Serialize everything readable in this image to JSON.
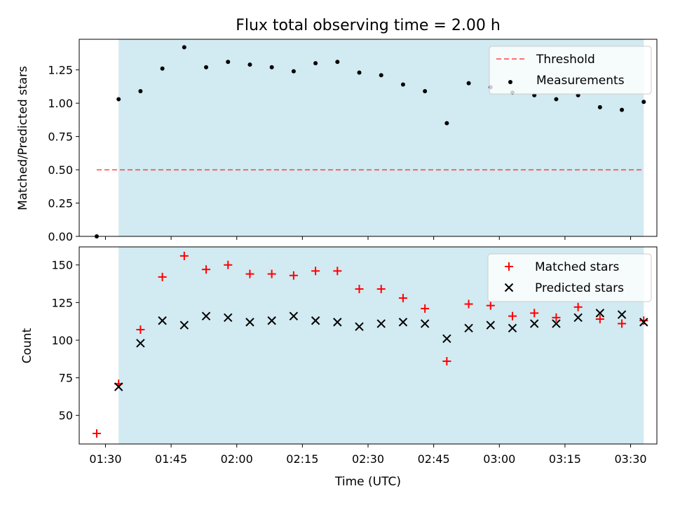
{
  "chart_data": [
    {
      "type": "scatter",
      "title": "Flux total observing time = 2.00 h",
      "ylabel": "Matched/Predicted stars",
      "xlabel": "",
      "x_unit": "Time (UTC)",
      "xlim": [
        "01:24",
        "03:36"
      ],
      "ylim": [
        0,
        1.48
      ],
      "yticks": [
        "0.00",
        "0.25",
        "0.50",
        "0.75",
        "1.00",
        "1.25"
      ],
      "xticks": [
        "01:30",
        "01:45",
        "02:00",
        "02:15",
        "02:30",
        "02:45",
        "03:00",
        "03:15",
        "03:30"
      ],
      "shaded_region": {
        "from": "01:33",
        "to": "03:33",
        "color": "#add8e6"
      },
      "legend_position": "top-right",
      "series": [
        {
          "name": "Threshold",
          "style": "dashed-line",
          "color": "#ff0000",
          "x": [
            "01:28",
            "03:33"
          ],
          "y": [
            0.5,
            0.5
          ]
        },
        {
          "name": "Measurements",
          "style": "dot",
          "color": "#000000",
          "x": [
            "01:28",
            "01:33",
            "01:38",
            "01:43",
            "01:48",
            "01:53",
            "01:58",
            "02:03",
            "02:08",
            "02:13",
            "02:18",
            "02:23",
            "02:28",
            "02:33",
            "02:38",
            "02:43",
            "02:48",
            "02:53",
            "02:58",
            "03:03",
            "03:08",
            "03:13",
            "03:18",
            "03:23",
            "03:28",
            "03:33"
          ],
          "y": [
            0.0,
            1.03,
            1.09,
            1.26,
            1.42,
            1.27,
            1.31,
            1.29,
            1.27,
            1.24,
            1.3,
            1.31,
            1.23,
            1.21,
            1.14,
            1.09,
            0.85,
            1.15,
            1.12,
            1.08,
            1.06,
            1.03,
            1.06,
            0.97,
            0.95,
            1.01
          ]
        }
      ]
    },
    {
      "type": "scatter",
      "title": "",
      "ylabel": "Count",
      "xlabel": "Time (UTC)",
      "xlim": [
        "01:24",
        "03:36"
      ],
      "ylim": [
        31,
        162
      ],
      "yticks": [
        "50",
        "75",
        "100",
        "125",
        "150"
      ],
      "xticks": [
        "01:30",
        "01:45",
        "02:00",
        "02:15",
        "02:30",
        "02:45",
        "03:00",
        "03:15",
        "03:30"
      ],
      "shaded_region": {
        "from": "01:33",
        "to": "03:33",
        "color": "#add8e6"
      },
      "legend_position": "top-right",
      "series": [
        {
          "name": "Matched stars",
          "style": "plus",
          "color": "#ff0000",
          "x": [
            "01:28",
            "01:33",
            "01:38",
            "01:43",
            "01:48",
            "01:53",
            "01:58",
            "02:03",
            "02:08",
            "02:13",
            "02:18",
            "02:23",
            "02:28",
            "02:33",
            "02:38",
            "02:43",
            "02:48",
            "02:53",
            "02:58",
            "03:03",
            "03:08",
            "03:13",
            "03:18",
            "03:23",
            "03:28",
            "03:33"
          ],
          "y": [
            38,
            71,
            107,
            142,
            156,
            147,
            150,
            144,
            144,
            143,
            146,
            146,
            134,
            134,
            128,
            121,
            86,
            124,
            123,
            116,
            118,
            115,
            122,
            114,
            111,
            113
          ]
        },
        {
          "name": "Predicted stars",
          "style": "x",
          "color": "#000000",
          "x": [
            "01:33",
            "01:38",
            "01:43",
            "01:48",
            "01:53",
            "01:58",
            "02:03",
            "02:08",
            "02:13",
            "02:18",
            "02:23",
            "02:28",
            "02:33",
            "02:38",
            "02:43",
            "02:48",
            "02:53",
            "02:58",
            "03:03",
            "03:08",
            "03:13",
            "03:18",
            "03:23",
            "03:28",
            "03:33"
          ],
          "y": [
            69,
            98,
            113,
            110,
            116,
            115,
            112,
            113,
            116,
            113,
            112,
            109,
            111,
            112,
            111,
            101,
            108,
            110,
            108,
            111,
            111,
            115,
            118,
            117,
            112
          ]
        }
      ]
    }
  ]
}
